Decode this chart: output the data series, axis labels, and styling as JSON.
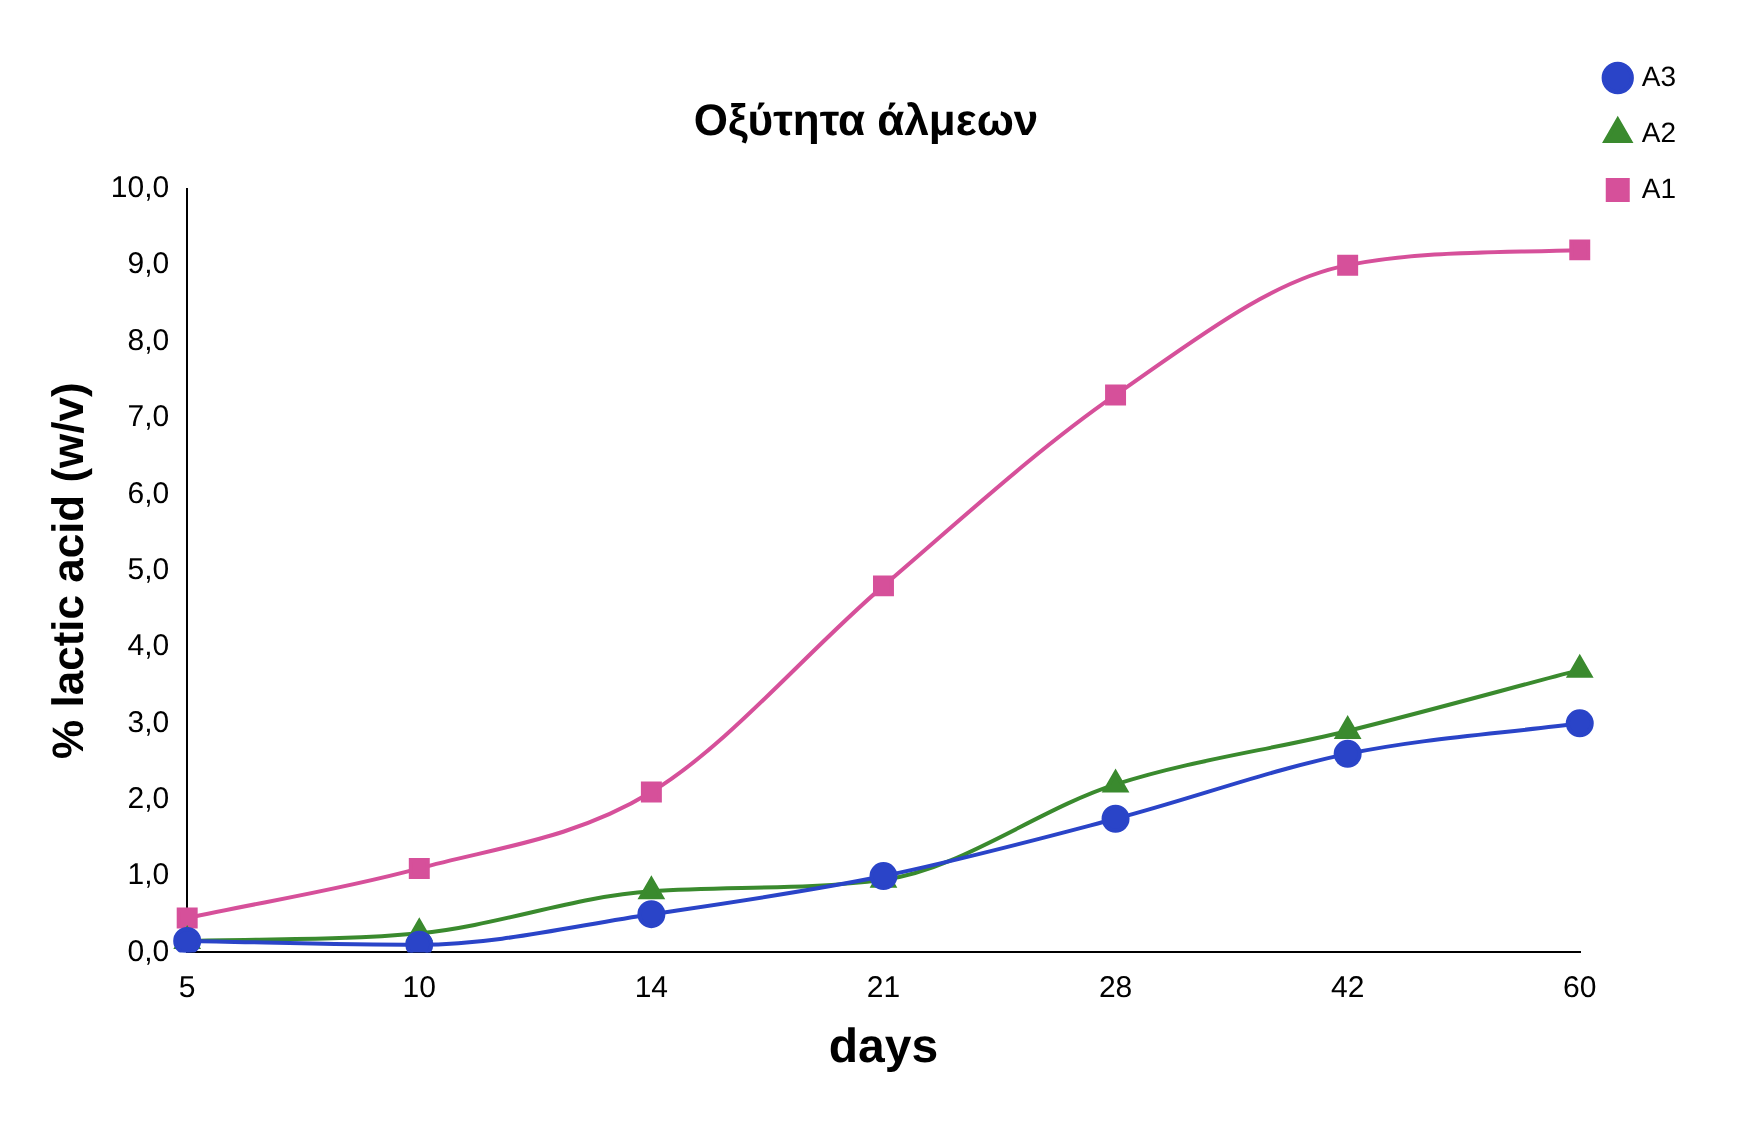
{
  "chart_data": {
    "type": "line",
    "title": "Οξύτητα άλμεων",
    "xlabel": "days",
    "ylabel": "% lactic acid (w/v)",
    "categories": [
      "5",
      "10",
      "14",
      "21",
      "28",
      "42",
      "60"
    ],
    "series": [
      {
        "name": "A1",
        "color": "#d6509a",
        "marker": "square",
        "values": [
          0.45,
          1.1,
          2.1,
          4.8,
          7.3,
          9.0,
          9.2
        ]
      },
      {
        "name": "A2",
        "color": "#3a8a2e",
        "marker": "triangle",
        "values": [
          0.15,
          0.25,
          0.8,
          0.95,
          2.2,
          2.9,
          3.7
        ]
      },
      {
        "name": "A3",
        "color": "#2a44c8",
        "marker": "circle",
        "values": [
          0.15,
          0.1,
          0.5,
          1.0,
          1.75,
          2.6,
          3.0
        ]
      }
    ],
    "ylim": [
      0,
      10
    ],
    "yticks": [
      {
        "value": 0,
        "label": "0,0"
      },
      {
        "value": 1,
        "label": "1,0"
      },
      {
        "value": 2,
        "label": "2,0"
      },
      {
        "value": 3,
        "label": "3,0"
      },
      {
        "value": 4,
        "label": "4,0"
      },
      {
        "value": 5,
        "label": "5,0"
      },
      {
        "value": 6,
        "label": "6,0"
      },
      {
        "value": 7,
        "label": "7,0"
      },
      {
        "value": 8,
        "label": "8,0"
      },
      {
        "value": 9,
        "label": "9,0"
      },
      {
        "value": 10,
        "label": "10,0"
      }
    ],
    "grid": false,
    "legend": "top right",
    "line_style": "solid"
  }
}
